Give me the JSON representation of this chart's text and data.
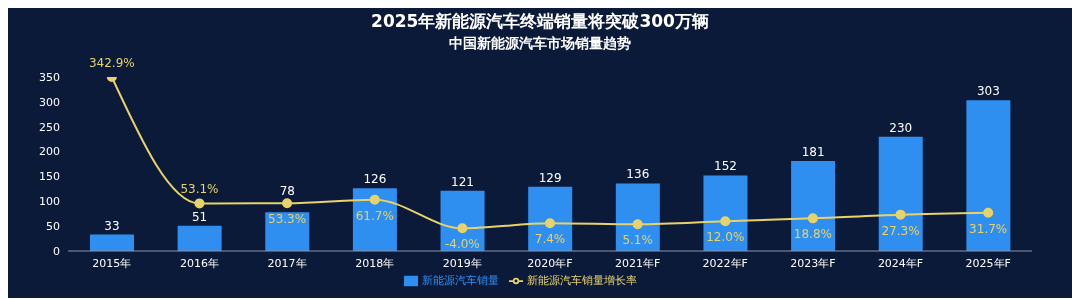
{
  "chart_data": {
    "type": "bar",
    "title": "2025年新能源汽车终端销量将突破300万辆",
    "subtitle": "中国新能源汽车市场销量趋势",
    "categories": [
      "2015年",
      "2016年",
      "2017年",
      "2018年",
      "2019年",
      "2020年F",
      "2021年F",
      "2022年F",
      "2023年F",
      "2024年F",
      "2025年F"
    ],
    "series": [
      {
        "name": "新能源汽车销量",
        "color": "#2e8ff0",
        "values": [
          33,
          51,
          78,
          126,
          121,
          129,
          136,
          152,
          181,
          230,
          303
        ],
        "value_labels": [
          "33",
          "51",
          "78",
          "126",
          "121",
          "129",
          "136",
          "152",
          "181",
          "230",
          "303"
        ]
      },
      {
        "name": "新能源汽车销量增长率",
        "type": "line",
        "axis": "y2",
        "color": "#e8d36a",
        "values": [
          342.9,
          53.1,
          53.3,
          61.7,
          -4.0,
          7.4,
          5.1,
          12.0,
          18.8,
          27.3,
          31.7
        ],
        "value_labels": [
          "342.9%",
          "53.1%",
          "53.3%",
          "61.7%",
          "-4.0%",
          "7.4%",
          "5.1%",
          "12.0%",
          "18.8%",
          "27.3%",
          "31.7%"
        ]
      }
    ],
    "ylim": [
      0,
      350
    ],
    "yticks": [
      0,
      50,
      100,
      150,
      200,
      250,
      300,
      350
    ],
    "grid": false,
    "legend": "bottom",
    "marker": "circle",
    "line_style": "solid"
  }
}
